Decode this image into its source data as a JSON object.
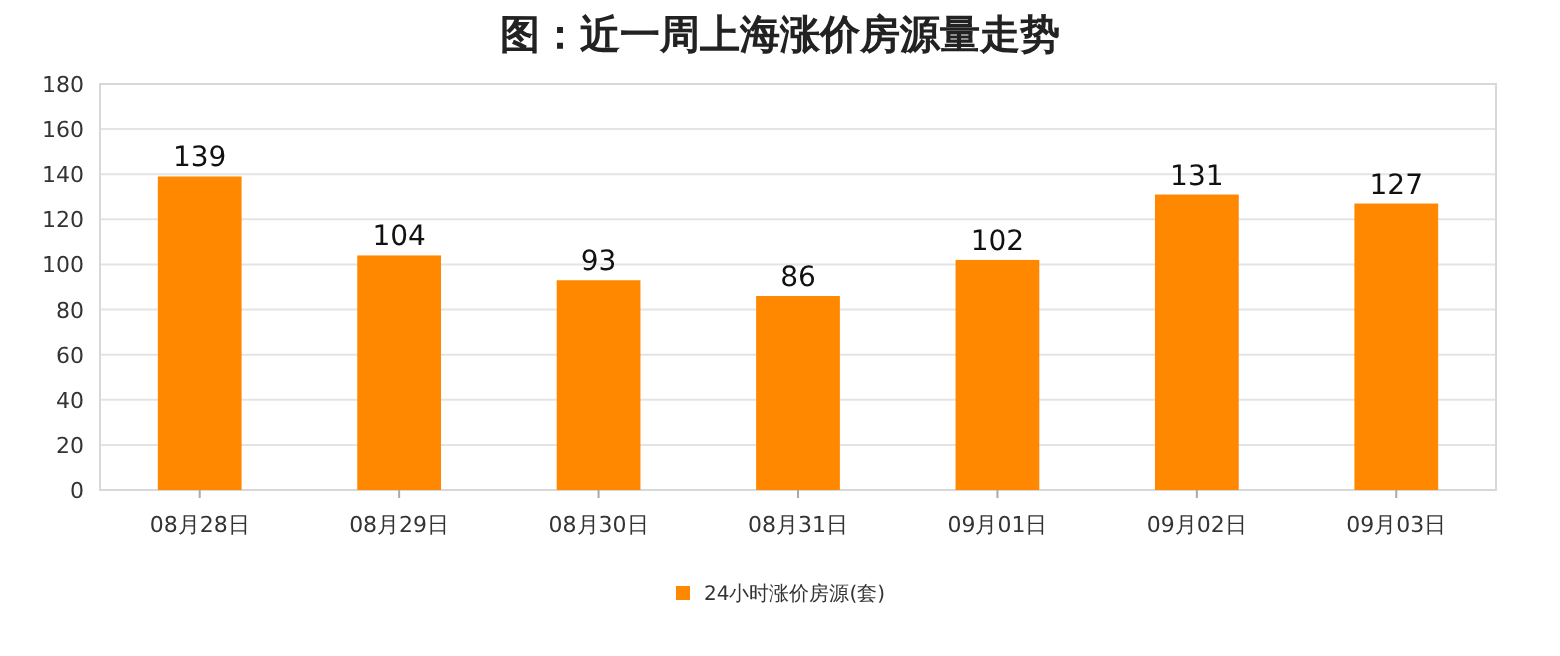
{
  "chart_data": {
    "type": "bar",
    "title": "图：近一周上海涨价房源量走势",
    "categories": [
      "08月28日",
      "08月29日",
      "08月30日",
      "08月31日",
      "09月01日",
      "09月02日",
      "09月03日"
    ],
    "series": [
      {
        "name": "24小时涨价房源(套)",
        "color": "#ff8800",
        "values": [
          139,
          104,
          93,
          86,
          102,
          131,
          127
        ]
      }
    ],
    "ylim": [
      0,
      180
    ],
    "yticks": [
      0,
      20,
      40,
      60,
      80,
      100,
      120,
      140,
      160,
      180
    ],
    "grid": "y",
    "legend": "bottom",
    "data_labels": true
  }
}
